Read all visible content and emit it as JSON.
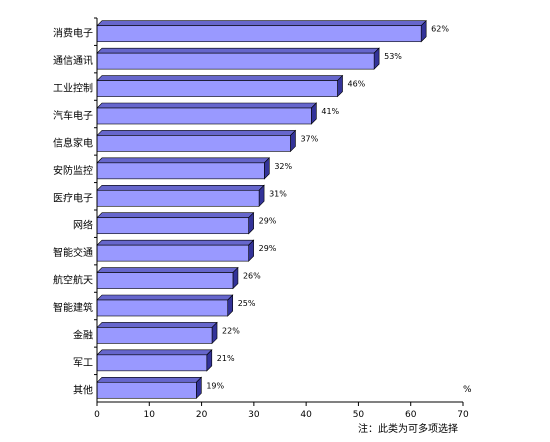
{
  "chart_data": {
    "type": "bar",
    "orientation": "horizontal",
    "categories": [
      "消费电子",
      "通信通讯",
      "工业控制",
      "汽车电子",
      "信息家电",
      "安防监控",
      "医疗电子",
      "网络",
      "智能交通",
      "航空航天",
      "智能建筑",
      "金融",
      "军工",
      "其他"
    ],
    "values": [
      62,
      53,
      46,
      41,
      37,
      32,
      31,
      29,
      29,
      26,
      25,
      22,
      21,
      19
    ],
    "value_labels": [
      "62%",
      "53%",
      "46%",
      "41%",
      "37%",
      "32%",
      "31%",
      "29%",
      "29%",
      "26%",
      "25%",
      "22%",
      "21%",
      "19%"
    ],
    "xlim": [
      0,
      70
    ],
    "x_ticks": [
      "0",
      "10",
      "20",
      "30",
      "40",
      "50",
      "60",
      "70"
    ],
    "unit_label": "%",
    "note": "注：此类为可多项选择",
    "bar_color": "#9999ff",
    "bar_side_color": "#333399",
    "bar_top_color": "#6666cc",
    "grid": false,
    "legend": false
  }
}
